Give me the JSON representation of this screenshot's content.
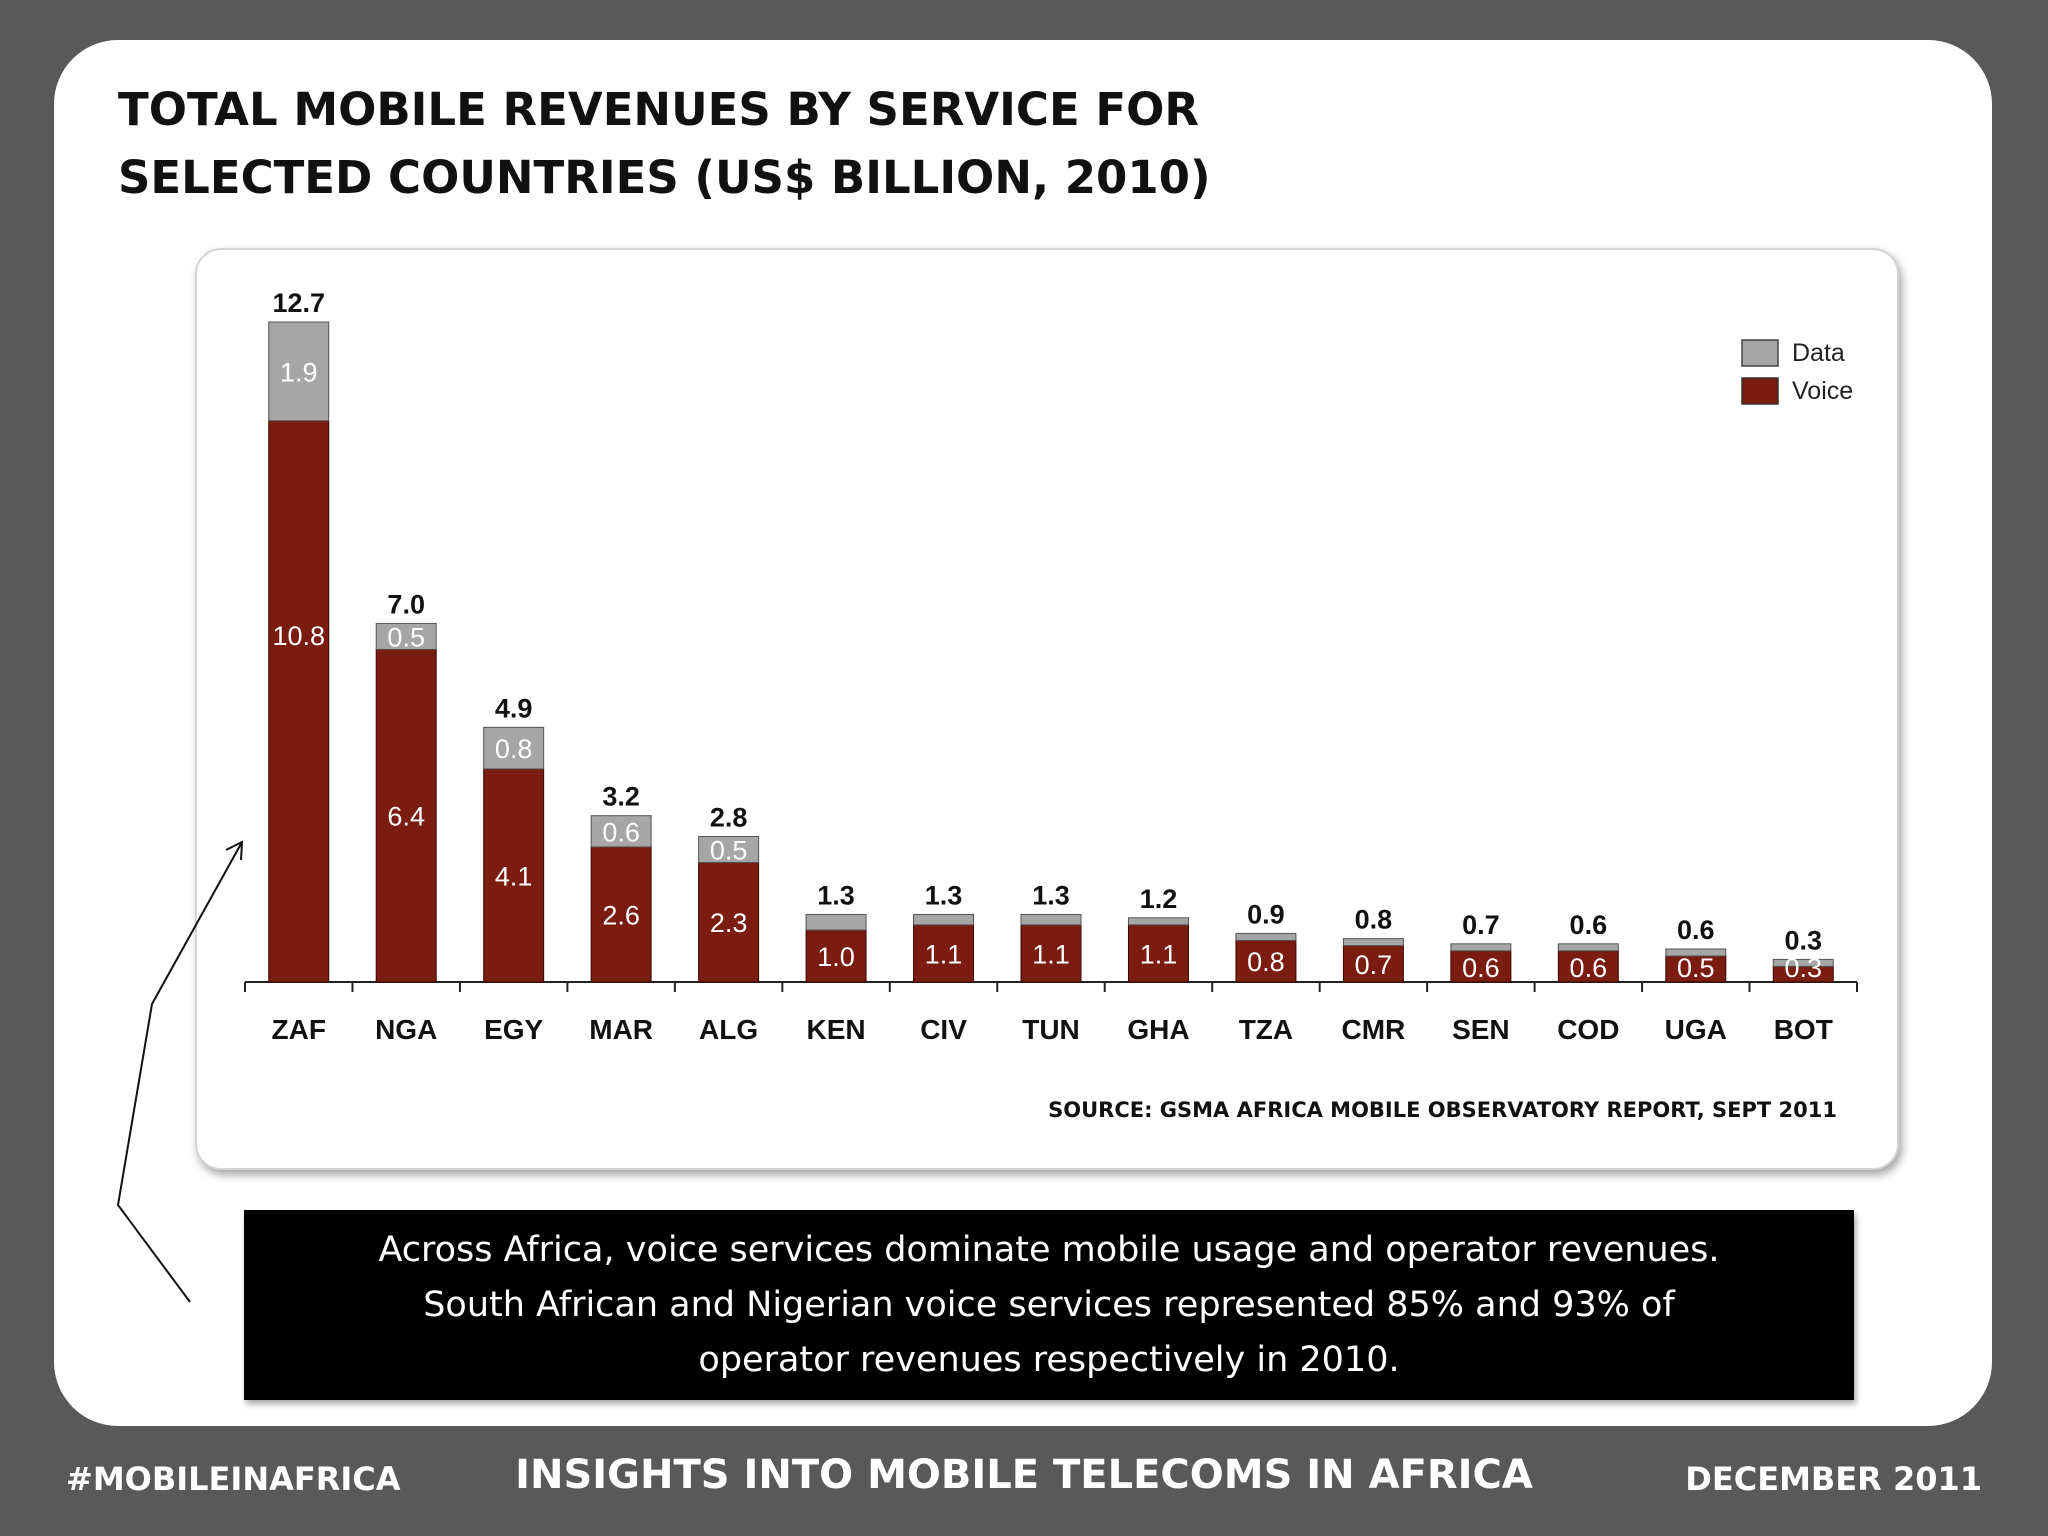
{
  "slide": {
    "title_line1": "TOTAL MOBILE REVENUES BY SERVICE FOR",
    "title_line2": "SELECTED COUNTRIES (US$ BILLION, 2010)",
    "source": "SOURCE: GSMA AFRICA MOBILE OBSERVATORY REPORT, SEPT 2011",
    "callout": {
      "line1": "Across Africa, voice services dominate mobile usage and operator revenues.",
      "line2": "South African and Nigerian voice services represented 85% and 93% of",
      "line3": "operator revenues respectively in 2010."
    }
  },
  "footer": {
    "left": "#MOBILEINAFRICA",
    "center": "INSIGHTS INTO MOBILE TELECOMS IN AFRICA",
    "right": "DECEMBER 2011"
  },
  "colors": {
    "data": "#a6a6a6",
    "voice": "#7b1c10",
    "background": "#595959"
  },
  "chart_data": {
    "type": "bar",
    "stacked": true,
    "categories": [
      "ZAF",
      "NGA",
      "EGY",
      "MAR",
      "ALG",
      "KEN",
      "CIV",
      "TUN",
      "GHA",
      "TZA",
      "CMR",
      "SEN",
      "COD",
      "UGA",
      "BOT"
    ],
    "series": [
      {
        "name": "Voice",
        "values": [
          10.8,
          6.4,
          4.1,
          2.6,
          2.3,
          1.0,
          1.1,
          1.1,
          1.1,
          0.8,
          0.7,
          0.6,
          0.6,
          0.5,
          0.3
        ],
        "labels": [
          "10.8",
          "6.4",
          "4.1",
          "2.6",
          "2.3",
          "1.0",
          "1.1",
          "1.1",
          "1.1",
          "0.8",
          "0.7",
          "0.6",
          "0.6",
          "0.5",
          "0.3"
        ]
      },
      {
        "name": "Data",
        "values": [
          1.9,
          0.5,
          0.8,
          0.6,
          0.5,
          0.3,
          0.2,
          0.2,
          0.1,
          0.1,
          0.1,
          0.1,
          0.0,
          0.1,
          0.0
        ],
        "labels": [
          "1.9",
          "0.5",
          "0.8",
          "0.6",
          "0.5",
          "",
          "",
          "",
          "",
          "",
          "",
          "",
          "",
          "",
          ""
        ]
      }
    ],
    "totals": [
      12.7,
      7.0,
      4.9,
      3.2,
      2.8,
      1.3,
      1.3,
      1.3,
      1.2,
      0.9,
      0.8,
      0.7,
      0.6,
      0.6,
      0.3
    ],
    "total_labels": [
      "12.7",
      "7.0",
      "4.9",
      "3.2",
      "2.8",
      "1.3",
      "1.3",
      "1.3",
      "1.2",
      "0.9",
      "0.8",
      "0.7",
      "0.6",
      "0.6",
      "0.3"
    ],
    "title": "TOTAL MOBILE REVENUES BY SERVICE FOR SELECTED COUNTRIES (US$ BILLION, 2010)",
    "xlabel": "",
    "ylabel": "",
    "ylim": [
      0,
      12.7
    ],
    "grid": false,
    "legend": {
      "position": "top-right",
      "entries": [
        "Data",
        "Voice"
      ]
    }
  }
}
